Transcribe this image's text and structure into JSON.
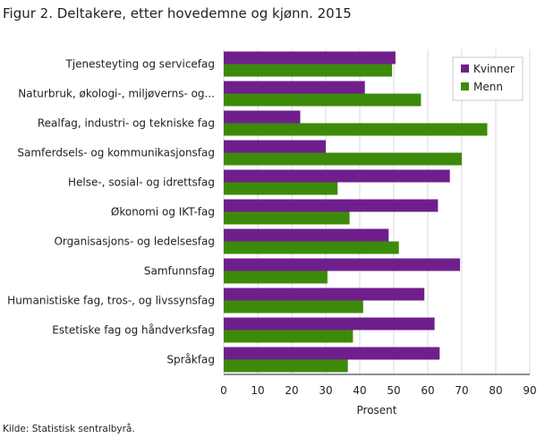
{
  "chart_data": {
    "type": "bar",
    "orientation": "horizontal",
    "title": "Figur 2. Deltakere, etter hovedemne og kjønn. 2015",
    "xlabel": "Prosent",
    "ylabel": "",
    "xlim": [
      0,
      90
    ],
    "xticks": [
      0,
      10,
      20,
      30,
      40,
      50,
      60,
      70,
      80,
      90
    ],
    "grid": "vertical",
    "legend_position": "top-right",
    "categories": [
      "Tjenesteyting og servicefag",
      "Naturbruk, økologi-, miljøverns- og...",
      "Realfag, industri- og tekniske fag",
      "Samferdsels- og kommunikasjonsfag",
      "Helse-, sosial- og idrettsfag",
      "Økonomi og IKT-fag",
      "Organisasjons- og ledelsesfag",
      "Samfunnsfag",
      "Humanistiske fag, tros-, og livssynsfag",
      "Estetiske fag og håndverksfag",
      "Språkfag"
    ],
    "series": [
      {
        "name": "Kvinner",
        "color": "#6f1f8c",
        "values": [
          50.5,
          41.5,
          22.5,
          30,
          66.5,
          63,
          48.5,
          69.5,
          59,
          62,
          63.5
        ]
      },
      {
        "name": "Menn",
        "color": "#3d8a0a",
        "values": [
          49.5,
          58,
          77.5,
          70,
          33.5,
          37,
          51.5,
          30.5,
          41,
          38,
          36.5
        ]
      }
    ]
  },
  "source": "Kilde: Statistisk sentralbyrå."
}
